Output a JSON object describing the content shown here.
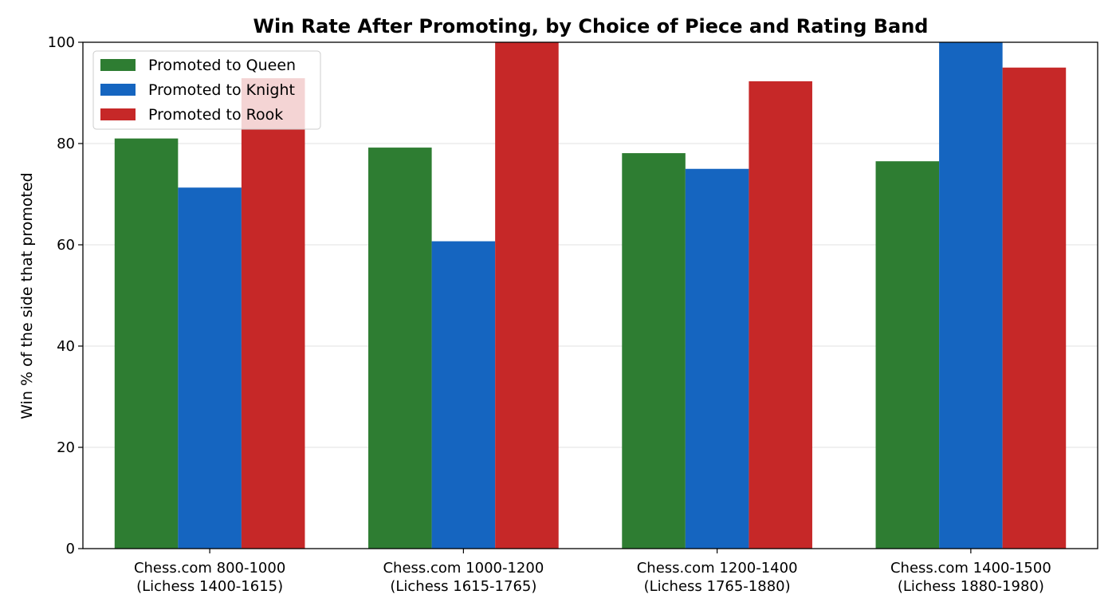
{
  "chart_data": {
    "type": "bar",
    "title": "Win Rate After Promoting, by Choice of Piece and Rating Band",
    "xlabel": "",
    "ylabel": "Win % of the side that promoted",
    "ylim": [
      0,
      100
    ],
    "yticks": [
      0,
      20,
      40,
      60,
      80,
      100
    ],
    "grid": "y",
    "legend_position": "top-left",
    "categories": [
      [
        "Chess.com 800-1000",
        "(Lichess 1400-1615)"
      ],
      [
        "Chess.com 1000-1200",
        "(Lichess 1615-1765)"
      ],
      [
        "Chess.com 1200-1400",
        "(Lichess 1765-1880)"
      ],
      [
        "Chess.com 1400-1500",
        "(Lichess 1880-1980)"
      ]
    ],
    "series": [
      {
        "name": "Promoted to Queen",
        "color": "#2e7d32",
        "values": [
          81.0,
          79.2,
          78.1,
          76.5
        ]
      },
      {
        "name": "Promoted to Knight",
        "color": "#1565c0",
        "values": [
          71.3,
          60.7,
          75.0,
          100.0
        ]
      },
      {
        "name": "Promoted to Rook",
        "color": "#c62828",
        "values": [
          92.9,
          100.0,
          92.3,
          95.0
        ]
      }
    ]
  }
}
